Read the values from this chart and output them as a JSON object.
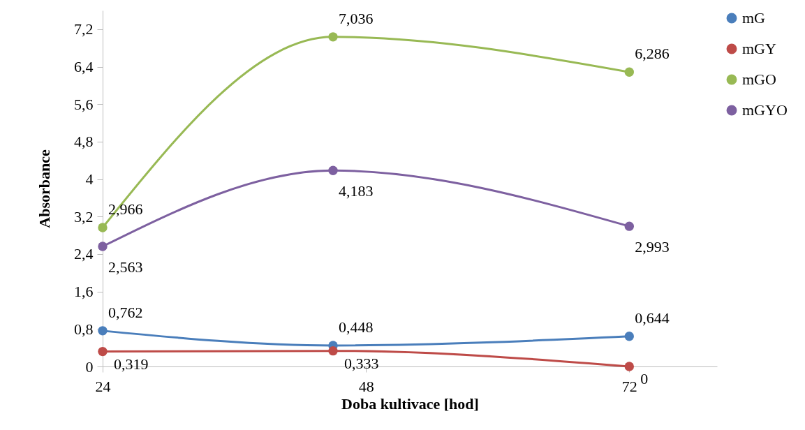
{
  "chart_data": {
    "type": "line",
    "xlabel": "Doba kultivace [hod]",
    "ylabel": "Absorbance",
    "x": [
      24,
      45,
      72
    ],
    "series": [
      {
        "name": "mG",
        "color": "#4a7ebb",
        "values": [
          0.762,
          0.448,
          0.644
        ],
        "value_labels": [
          "0,762",
          "0,448",
          "0,644"
        ]
      },
      {
        "name": "mGY",
        "color": "#be4b48",
        "values": [
          0.319,
          0.333,
          0
        ],
        "value_labels": [
          "0,319",
          "0,333",
          "0"
        ]
      },
      {
        "name": "mGO",
        "color": "#98b954",
        "values": [
          2.966,
          7.036,
          6.286
        ],
        "value_labels": [
          "2,966",
          "7,036",
          "6,286"
        ]
      },
      {
        "name": "mGYO",
        "color": "#7d60a0",
        "values": [
          2.563,
          4.183,
          2.993
        ],
        "value_labels": [
          "2,563",
          "4,183",
          "2,993"
        ]
      }
    ],
    "xlim": [
      24,
      80
    ],
    "xticks": [
      24,
      48,
      72
    ],
    "ylim": [
      0,
      7.6
    ],
    "yticks": [
      0,
      {
        "value": 0.8,
        "label": "0,8"
      },
      {
        "value": 1.6,
        "label": "1,6"
      },
      {
        "value": 2.4,
        "label": "2,4"
      },
      {
        "value": 3.2,
        "label": "3,2"
      },
      4,
      {
        "value": 4.8,
        "label": "4,8"
      },
      {
        "value": 5.6,
        "label": "5,6"
      },
      {
        "value": 6.4,
        "label": "6,4"
      },
      {
        "value": 7.2,
        "label": "7,2"
      }
    ],
    "grid": false,
    "legend": "right",
    "marker": "circle",
    "line_style": "solid",
    "data_labels": true
  }
}
